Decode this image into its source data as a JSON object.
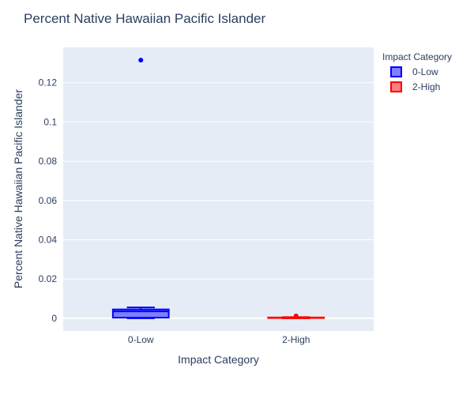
{
  "chart_data": {
    "type": "box",
    "title": "Percent Native Hawaiian Pacific Islander",
    "xlabel": "Impact Category",
    "ylabel": "Percent Native Hawaiian Pacific Islander",
    "categories": [
      "0-Low",
      "2-High"
    ],
    "ylim": [
      -0.0065,
      0.138
    ],
    "yticks": [
      0,
      0.02,
      0.04,
      0.06,
      0.08,
      0.1,
      0.12
    ],
    "ytick_labels": [
      "0",
      "0.02",
      "0.04",
      "0.06",
      "0.08",
      "0.1",
      "0.12"
    ],
    "grid": true,
    "legend": {
      "title": "Impact Category",
      "placement": "top-right"
    },
    "series": [
      {
        "name": "0-Low",
        "category": "0-Low",
        "color": "#0000ff",
        "fill": "#7f7fff",
        "min": 0,
        "q1": 0.0003,
        "median": 0.0035,
        "q3": 0.0045,
        "max": 0.0055,
        "outliers": [
          0.1315
        ]
      },
      {
        "name": "2-High",
        "category": "2-High",
        "color": "#ff0000",
        "fill": "#ff7f7f",
        "min": 0,
        "q1": 0.0001,
        "median": 0.0003,
        "q3": 0.0004,
        "max": 0.0006,
        "outliers": [
          0.0012
        ]
      }
    ]
  }
}
